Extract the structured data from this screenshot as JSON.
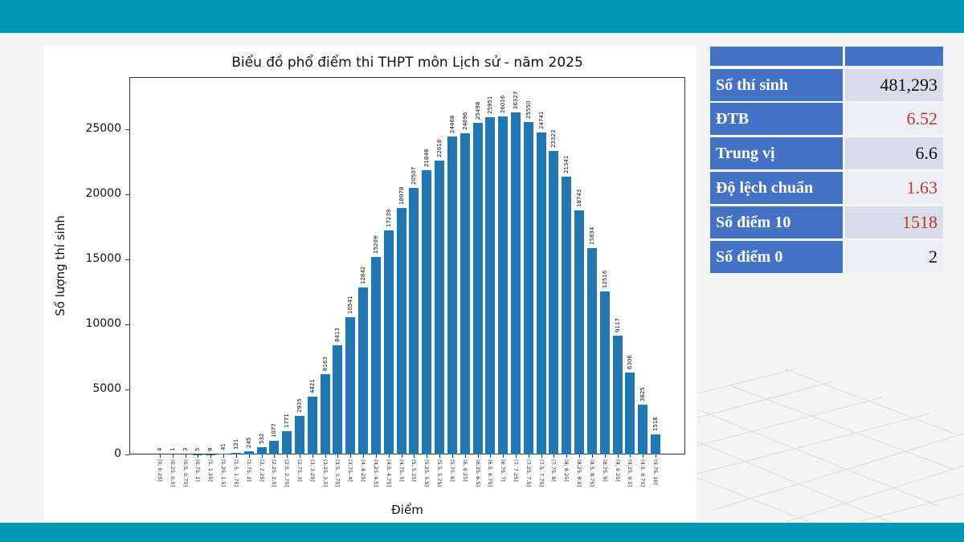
{
  "chart_data": {
    "type": "bar",
    "title": "Biểu đồ phổ điểm thi THPT môn Lịch sử - năm 2025",
    "xlabel": "Điểm",
    "ylabel": "Số lượng thí sinh",
    "ylim": [
      0,
      27500
    ],
    "yticks": [
      0,
      5000,
      10000,
      15000,
      20000,
      25000
    ],
    "grid": false,
    "legend": null,
    "categories": [
      "[0, 0.25]",
      "(0.25, 0.5]",
      "(0.5, 0.75]",
      "(0.75, 1]",
      "(1, 1.25]",
      "(1.25, 1.5]",
      "(1.5, 1.75]",
      "(1.75, 2]",
      "(2, 2.25]",
      "(2.25, 2.5]",
      "(2.5, 2.75]",
      "(2.75, 3]",
      "(3, 3.25]",
      "(3.25, 3.5]",
      "(3.5, 3.75]",
      "(3.75, 4]",
      "(4, 4.25]",
      "(4.25, 4.5]",
      "(4.5, 4.75]",
      "(4.75, 5]",
      "(5, 5.25]",
      "(5.25, 5.5]",
      "(5.5, 5.75]",
      "(5.75, 6]",
      "(6, 6.25]",
      "(6.25, 6.5]",
      "(6.5, 6.75]",
      "(6.75, 7]",
      "(7, 7.25]",
      "(7.25, 7.5]",
      "(7.5, 7.75]",
      "(7.75, 8]",
      "(8, 8.25]",
      "(8.25, 8.5]",
      "(8.5, 8.75]",
      "(8.75, 9]",
      "(9, 9.25]",
      "(9.25, 9.5]",
      "(9.5, 9.75]",
      "(9.75, 10]"
    ],
    "values": [
      4,
      1,
      3,
      5,
      9,
      41,
      121,
      245,
      532,
      1077,
      1771,
      2935,
      4421,
      6163,
      8413,
      10541,
      12842,
      15209,
      17239,
      18978,
      20507,
      21848,
      22618,
      24468,
      24696,
      25498,
      25951,
      26016,
      26327,
      25550,
      24741,
      23323,
      21341,
      18743,
      15834,
      12516,
      9117,
      6306,
      3825,
      1518
    ]
  },
  "stats_table": {
    "header": [
      "",
      ""
    ],
    "rows": [
      {
        "label": "Số thí sinh",
        "value": "481,293",
        "highlight": false
      },
      {
        "label": "ĐTB",
        "value": "6.52",
        "highlight": true
      },
      {
        "label": "Trung vị",
        "value": "6.6",
        "highlight": false
      },
      {
        "label": "Độ lệch chuẩn",
        "value": "1.63",
        "highlight": true
      },
      {
        "label": "Số điểm 10",
        "value": "1518",
        "highlight": true
      },
      {
        "label": "Số điểm 0",
        "value": "2",
        "highlight": false
      }
    ]
  },
  "colors": {
    "band": "#0098b3",
    "bar": "#1f77b4",
    "table_label_bg": "#4472c4",
    "highlight_text": "#c0392b"
  }
}
